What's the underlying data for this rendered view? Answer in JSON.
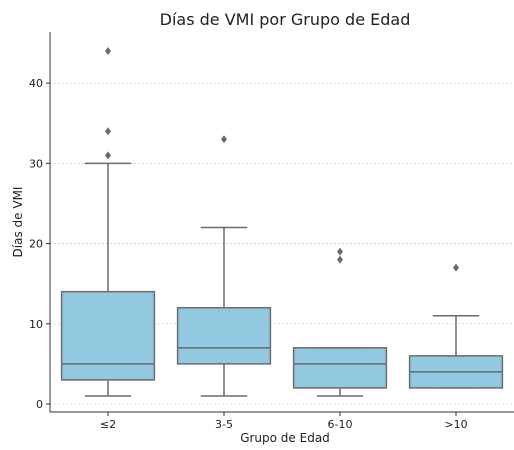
{
  "chart_data": {
    "type": "box",
    "title": "Días de VMI por Grupo de Edad",
    "xlabel": "Grupo de Edad",
    "ylabel": "Días de VMI",
    "categories": [
      "≤2",
      "3-5",
      "6-10",
      ">10"
    ],
    "ylim": [
      -1,
      46
    ],
    "yticks": [
      0,
      10,
      20,
      30,
      40
    ],
    "grid": "y-dashed",
    "box_color": "#92c9e0",
    "line_color": "#6b6b6b",
    "boxes": [
      {
        "category": "≤2",
        "whisker_low": 1,
        "q1": 3,
        "median": 5,
        "q3": 14,
        "whisker_high": 30,
        "outliers": [
          31,
          34,
          44
        ]
      },
      {
        "category": "3-5",
        "whisker_low": 1,
        "q1": 5,
        "median": 7,
        "q3": 12,
        "whisker_high": 22,
        "outliers": [
          33
        ]
      },
      {
        "category": "6-10",
        "whisker_low": 1,
        "q1": 2,
        "median": 5,
        "q3": 7,
        "whisker_high": 7,
        "outliers": [
          18,
          19
        ]
      },
      {
        "category": ">10",
        "whisker_low": 2,
        "q1": 2,
        "median": 4,
        "q3": 6,
        "whisker_high": 11,
        "outliers": [
          17
        ]
      }
    ]
  }
}
